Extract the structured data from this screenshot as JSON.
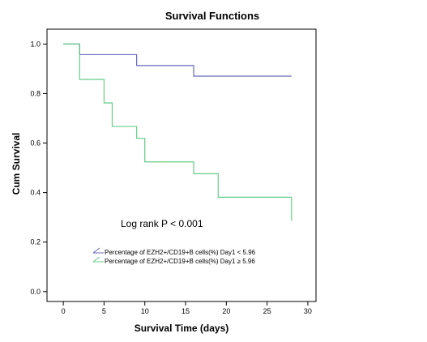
{
  "chart_data": {
    "type": "line",
    "subtype": "step",
    "title": "Survival Functions",
    "xlabel": "Survival Time (days)",
    "ylabel": "Cum Survival",
    "xlim": [
      -2,
      31
    ],
    "ylim": [
      -0.04,
      1.06
    ],
    "xticks": [
      0,
      5,
      10,
      15,
      20,
      25,
      30
    ],
    "yticks": [
      0.0,
      0.2,
      0.4,
      0.6,
      0.8,
      1.0
    ],
    "xtick_labels": [
      "0",
      "5",
      "10",
      "15",
      "20",
      "25",
      "30"
    ],
    "ytick_labels": [
      "0.0",
      "0.2",
      "0.4",
      "0.6",
      "0.8",
      "1.0"
    ],
    "grid": false,
    "legend_position": "bottom-left",
    "annotation": "Log rank P < 0.001",
    "series": [
      {
        "name": "Percentage of EZH2+/CD19+B cells(%)  Day1 < 5.96",
        "color": "#6666bb",
        "x": [
          0,
          2,
          9,
          16,
          28
        ],
        "y": [
          1.0,
          0.957,
          0.913,
          0.87,
          0.87
        ]
      },
      {
        "name": "Percentage of EZH2+/CD19+B cells(%)  Day1  ≥ 5.96",
        "color": "#66cc88",
        "x": [
          0,
          2,
          5,
          6,
          9,
          10,
          16,
          19,
          28,
          28
        ],
        "y": [
          1.0,
          0.857,
          0.762,
          0.667,
          0.619,
          0.524,
          0.476,
          0.381,
          0.381,
          0.286
        ]
      }
    ]
  }
}
